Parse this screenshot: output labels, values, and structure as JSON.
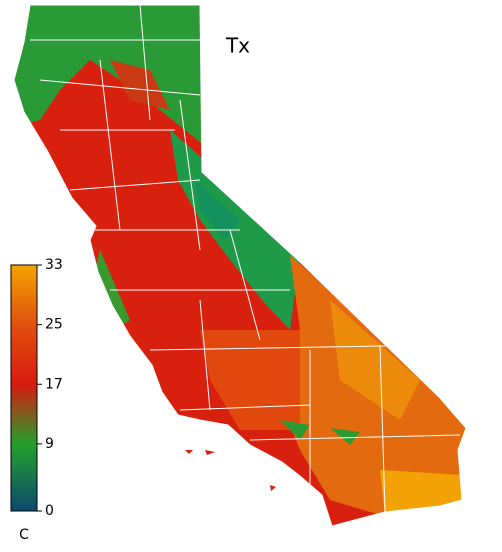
{
  "map": {
    "title": "Tx",
    "colorbar": {
      "lim": [
        0,
        33
      ],
      "ticks": [
        0,
        9,
        17,
        25,
        33
      ],
      "unit": "C",
      "colors": [
        "#0b4a6e",
        "#24a02c",
        "#d81a10",
        "#e2500e",
        "#f4a400"
      ]
    }
  }
}
